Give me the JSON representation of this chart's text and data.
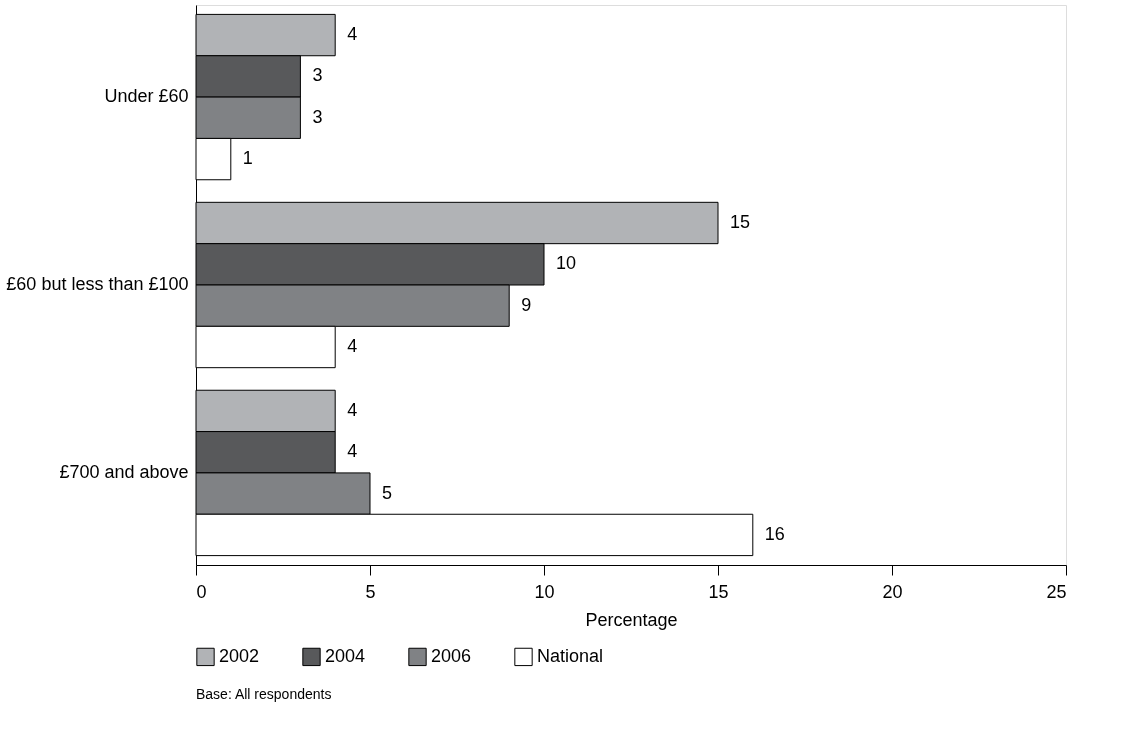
{
  "chart_data": {
    "type": "bar",
    "orientation": "horizontal",
    "xlabel": "Percentage",
    "categories": [
      "Under £60",
      "£60 but less than £100",
      "£700 and above"
    ],
    "series": [
      {
        "name": "2002",
        "color": "#b1b3b6",
        "values": [
          4,
          15,
          4
        ]
      },
      {
        "name": "2004",
        "color": "#58595b",
        "values": [
          3,
          10,
          4
        ]
      },
      {
        "name": "2006",
        "color": "#808285",
        "values": [
          3,
          9,
          5
        ]
      },
      {
        "name": "National",
        "color": "#ffffff",
        "values": [
          1,
          4,
          16
        ]
      }
    ],
    "xlim": [
      0,
      25
    ],
    "xticks": [
      0,
      5,
      10,
      15,
      20,
      25
    ],
    "grid": false,
    "legend": "bottom",
    "data_labels": true,
    "annotations": [
      "Base: All respondents"
    ]
  }
}
